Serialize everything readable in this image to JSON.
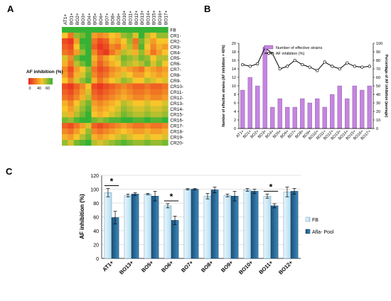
{
  "panels": {
    "a": "A",
    "b": "B",
    "c": "C"
  },
  "chart_data": [
    {
      "type": "heatmap",
      "panel": "A",
      "columns": [
        "AT1+",
        "BO1+",
        "BO2+",
        "BO3+",
        "BO4+",
        "BO5+",
        "BO6+",
        "BO7+",
        "BO8+",
        "BO9+",
        "BO10+",
        "BO11+",
        "BO12+",
        "BO13+",
        "BO14+",
        "BO15+",
        "BO16+",
        "BO17+"
      ],
      "rows": [
        "FB",
        "CR1-",
        "CR2-",
        "CR3-",
        "CR4-",
        "CR5-",
        "CR6-",
        "CR7-",
        "CR8-",
        "CR9-",
        "CR10-",
        "CR11-",
        "CR12-",
        "CR13-",
        "CR14-",
        "CR15-",
        "CR16-",
        "CR17-",
        "CR18-",
        "CR19-",
        "CR20-"
      ],
      "values": [
        [
          70,
          70,
          70,
          70,
          70,
          70,
          70,
          70,
          70,
          70,
          70,
          70,
          70,
          70,
          70,
          70,
          70,
          70
        ],
        [
          40,
          20,
          55,
          60,
          75,
          30,
          25,
          30,
          40,
          35,
          55,
          60,
          45,
          70,
          50,
          40,
          55,
          55
        ],
        [
          10,
          5,
          30,
          70,
          75,
          20,
          10,
          15,
          35,
          30,
          40,
          55,
          20,
          60,
          45,
          30,
          40,
          40
        ],
        [
          15,
          10,
          40,
          65,
          70,
          15,
          5,
          10,
          25,
          20,
          35,
          50,
          25,
          65,
          40,
          25,
          35,
          30
        ],
        [
          20,
          15,
          30,
          55,
          70,
          25,
          10,
          5,
          20,
          30,
          50,
          45,
          35,
          55,
          35,
          20,
          30,
          40
        ],
        [
          45,
          25,
          60,
          75,
          80,
          35,
          20,
          30,
          40,
          45,
          60,
          55,
          50,
          60,
          55,
          40,
          50,
          50
        ],
        [
          35,
          20,
          50,
          60,
          70,
          30,
          15,
          25,
          35,
          40,
          55,
          50,
          45,
          50,
          60,
          45,
          55,
          40
        ],
        [
          25,
          10,
          30,
          40,
          55,
          20,
          10,
          15,
          25,
          30,
          35,
          30,
          25,
          20,
          35,
          30,
          25,
          30
        ],
        [
          30,
          15,
          35,
          45,
          60,
          25,
          15,
          20,
          30,
          35,
          45,
          40,
          30,
          30,
          40,
          35,
          30,
          35
        ],
        [
          40,
          25,
          45,
          55,
          65,
          35,
          20,
          30,
          40,
          45,
          55,
          50,
          40,
          40,
          50,
          45,
          40,
          45
        ],
        [
          10,
          5,
          15,
          25,
          40,
          10,
          5,
          10,
          15,
          20,
          25,
          20,
          15,
          15,
          20,
          15,
          15,
          20
        ],
        [
          15,
          10,
          20,
          30,
          45,
          15,
          10,
          15,
          20,
          25,
          30,
          25,
          20,
          20,
          25,
          20,
          20,
          25
        ],
        [
          20,
          15,
          25,
          35,
          50,
          20,
          15,
          20,
          25,
          30,
          35,
          30,
          25,
          25,
          30,
          25,
          25,
          30
        ],
        [
          35,
          25,
          40,
          50,
          60,
          30,
          25,
          30,
          35,
          40,
          50,
          45,
          40,
          40,
          45,
          40,
          40,
          45
        ],
        [
          40,
          30,
          45,
          55,
          65,
          35,
          30,
          35,
          40,
          45,
          55,
          50,
          45,
          45,
          50,
          45,
          45,
          50
        ],
        [
          45,
          35,
          50,
          60,
          70,
          40,
          35,
          40,
          45,
          50,
          60,
          55,
          50,
          50,
          55,
          50,
          50,
          55
        ],
        [
          60,
          55,
          65,
          70,
          75,
          60,
          55,
          60,
          65,
          65,
          70,
          70,
          65,
          65,
          70,
          65,
          65,
          70
        ],
        [
          15,
          10,
          20,
          30,
          45,
          15,
          10,
          15,
          20,
          25,
          30,
          25,
          20,
          20,
          25,
          20,
          20,
          25
        ],
        [
          25,
          20,
          30,
          40,
          55,
          25,
          20,
          25,
          30,
          35,
          40,
          35,
          30,
          30,
          35,
          30,
          30,
          35
        ],
        [
          35,
          30,
          40,
          50,
          60,
          35,
          30,
          35,
          40,
          45,
          50,
          45,
          40,
          40,
          45,
          40,
          40,
          45
        ],
        [
          55,
          45,
          60,
          65,
          70,
          50,
          45,
          50,
          55,
          60,
          65,
          60,
          55,
          55,
          60,
          55,
          55,
          60
        ]
      ],
      "legend": {
        "title": "AF inhibition (%)",
        "ticks": [
          "0",
          "40",
          "60"
        ]
      },
      "color_scale": [
        "#e8231e",
        "#f7c52a",
        "#35b235"
      ]
    },
    {
      "type": "bar",
      "panel": "B",
      "categories": [
        "AT1+",
        "BO1+",
        "BO2+",
        "BO3+",
        "BO4+",
        "BO5+",
        "BO6+",
        "BO7+",
        "BO8+",
        "BO9+",
        "BO10+",
        "BO11+",
        "BO12+",
        "BO13+",
        "BO14+",
        "BO15+",
        "BO16+",
        "BO17+"
      ],
      "series": [
        {
          "name": "Number of effective strains",
          "kind": "bar",
          "axis": "left",
          "values": [
            9,
            12,
            10,
            19,
            5,
            7,
            5,
            5,
            7,
            6,
            7,
            5,
            8,
            10,
            7,
            10,
            9,
            10
          ]
        },
        {
          "name": "AF inhibition (%)",
          "kind": "line",
          "axis": "right",
          "values": [
            75,
            73,
            76,
            95,
            88,
            70,
            73,
            80,
            75,
            72,
            68,
            78,
            73,
            70,
            77,
            73,
            72,
            73
          ]
        }
      ],
      "ylabel_left": "Number of effective strains (AF inhibition > 40%)",
      "ylabel_right": "Percentage of AF inhibition (average)",
      "ylim_left": [
        0,
        20
      ],
      "ylim_right": [
        0,
        100
      ],
      "yticks_left": [
        "0",
        "2",
        "4",
        "6",
        "8",
        "10",
        "12",
        "14",
        "16",
        "18",
        "20"
      ],
      "yticks_right": [
        "0",
        "10",
        "20",
        "30",
        "40",
        "50",
        "60",
        "70",
        "80",
        "90",
        "100"
      ],
      "legend_position": "top",
      "colors": {
        "bar": "#c585e0",
        "line": "#000000"
      }
    },
    {
      "type": "bar",
      "panel": "C",
      "categories": [
        "AT1+",
        "BO13+",
        "BO5+",
        "BO6+",
        "BO7+",
        "BO8+",
        "BO9+",
        "BO10+",
        "BO11+",
        "BO12+"
      ],
      "series": [
        {
          "name": "FB",
          "values": [
            95,
            91,
            93,
            76,
            100,
            90,
            91,
            99,
            90,
            96
          ],
          "errors": [
            6,
            2,
            1,
            3,
            1,
            4,
            2,
            2,
            3,
            7
          ]
        },
        {
          "name": "Afla- Pool",
          "values": [
            59,
            93,
            90,
            55,
            100,
            99,
            90,
            97,
            76,
            97
          ],
          "errors": [
            9,
            2,
            7,
            6,
            1,
            4,
            7,
            3,
            3,
            4
          ]
        }
      ],
      "ylabel": "AF inhibition (%)",
      "ylim": [
        0,
        120
      ],
      "yticks": [
        "0",
        "20",
        "40",
        "60",
        "80",
        "100",
        "120"
      ],
      "significance": [
        {
          "category": "AT1+",
          "label": "*"
        },
        {
          "category": "BO6+",
          "label": "*"
        },
        {
          "category": "BO11+",
          "label": "*"
        }
      ],
      "legend_position": "right",
      "colors": {
        "FB": "#daf0fa",
        "Afla- Pool": "#2c6e9e"
      }
    }
  ]
}
